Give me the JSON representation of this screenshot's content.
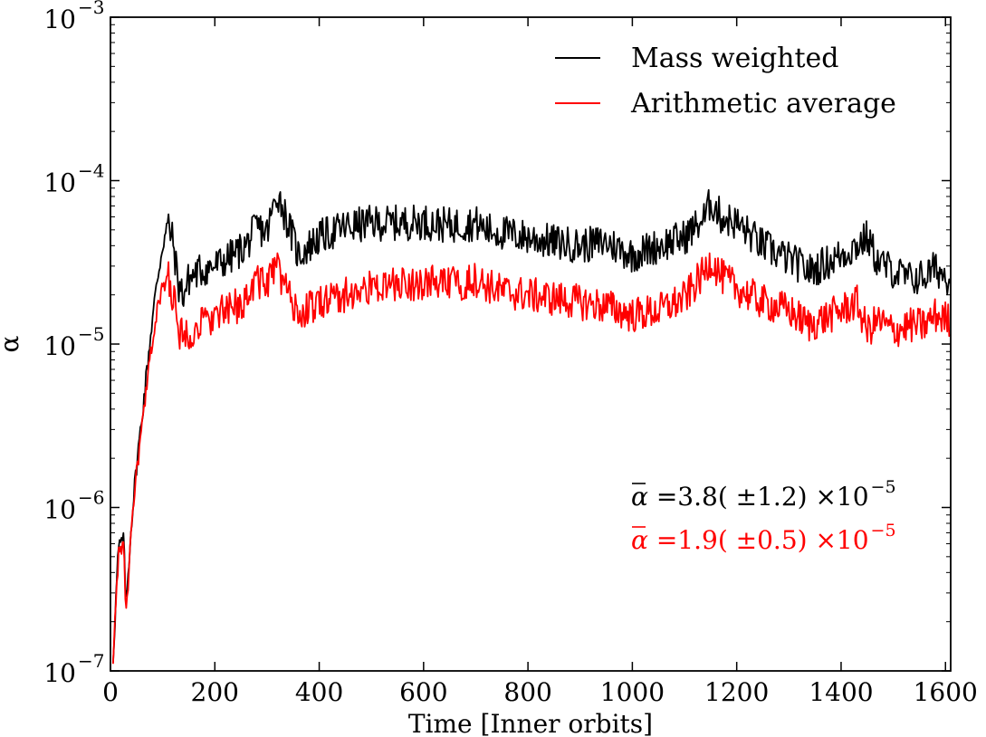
{
  "chart_data": {
    "type": "line",
    "xlabel": "Time [Inner orbits]",
    "ylabel": "α",
    "yscale": "log",
    "xlim": [
      0,
      1610
    ],
    "ylim": [
      1e-07,
      0.001
    ],
    "x_ticks": [
      {
        "value": 0,
        "label": "0"
      },
      {
        "value": 200,
        "label": "200"
      },
      {
        "value": 400,
        "label": "400"
      },
      {
        "value": 600,
        "label": "600"
      },
      {
        "value": 800,
        "label": "800"
      },
      {
        "value": 1000,
        "label": "1000"
      },
      {
        "value": 1200,
        "label": "1200"
      },
      {
        "value": 1400,
        "label": "1400"
      },
      {
        "value": 1600,
        "label": "1600"
      }
    ],
    "y_ticks": [
      {
        "value": 1e-07,
        "base": "10",
        "exponent": "−7"
      },
      {
        "value": 1e-06,
        "base": "10",
        "exponent": "−6"
      },
      {
        "value": 1e-05,
        "base": "10",
        "exponent": "−5"
      },
      {
        "value": 0.0001,
        "base": "10",
        "exponent": "−4"
      },
      {
        "value": 0.001,
        "base": "10",
        "exponent": "−3"
      }
    ],
    "legend_position": "top-right",
    "series": [
      {
        "name": "Mass weighted",
        "color": "#000000",
        "x": [
          5,
          15,
          25,
          30,
          40,
          50,
          60,
          70,
          80,
          90,
          100,
          110,
          120,
          130,
          140,
          150,
          170,
          200,
          230,
          260,
          280,
          300,
          320,
          340,
          360,
          400,
          450,
          500,
          550,
          600,
          650,
          700,
          720,
          750,
          800,
          850,
          900,
          950,
          1000,
          1050,
          1100,
          1140,
          1150,
          1170,
          1200,
          1250,
          1300,
          1340,
          1360,
          1400,
          1430,
          1450,
          1470,
          1500,
          1530,
          1560,
          1580,
          1610
        ],
        "values": [
          1.2e-07,
          5.5e-07,
          6.5e-07,
          2.5e-07,
          8e-07,
          1.8e-06,
          3.5e-06,
          7e-06,
          1.4e-05,
          2.5e-05,
          4e-05,
          5.5e-05,
          4.2e-05,
          2.3e-05,
          2e-05,
          2.5e-05,
          2.8e-05,
          3e-05,
          3.4e-05,
          4e-05,
          5.2e-05,
          4.8e-05,
          8.5e-05,
          5.5e-05,
          3.5e-05,
          4.5e-05,
          5.2e-05,
          5.5e-05,
          5.5e-05,
          5.6e-05,
          5.3e-05,
          5.5e-05,
          5e-05,
          4.8e-05,
          4.5e-05,
          4.2e-05,
          4e-05,
          4.2e-05,
          3.5e-05,
          4e-05,
          4.5e-05,
          6e-05,
          7.5e-05,
          6e-05,
          5.5e-05,
          4e-05,
          3.3e-05,
          2.8e-05,
          3e-05,
          3.5e-05,
          4e-05,
          4.5e-05,
          3.2e-05,
          2.8e-05,
          2.5e-05,
          2.6e-05,
          2.9e-05,
          2.5e-05
        ]
      },
      {
        "name": "Arithmetic average",
        "color": "#ff0000",
        "x": [
          5,
          15,
          25,
          30,
          40,
          50,
          60,
          70,
          80,
          90,
          100,
          110,
          120,
          130,
          140,
          150,
          170,
          200,
          230,
          260,
          280,
          300,
          320,
          340,
          360,
          400,
          450,
          500,
          550,
          600,
          650,
          700,
          720,
          750,
          800,
          850,
          900,
          950,
          1000,
          1050,
          1100,
          1140,
          1150,
          1170,
          1200,
          1250,
          1300,
          1340,
          1360,
          1400,
          1430,
          1450,
          1470,
          1500,
          1530,
          1560,
          1580,
          1610
        ],
        "values": [
          1.2e-07,
          5e-07,
          6e-07,
          2.2e-07,
          7e-07,
          1.6e-06,
          3e-06,
          5.5e-06,
          1.05e-05,
          1.6e-05,
          2.2e-05,
          2.6e-05,
          2e-05,
          1.2e-05,
          1.1e-05,
          1.2e-05,
          1.3e-05,
          1.5e-05,
          1.6e-05,
          1.9e-05,
          2.5e-05,
          2.3e-05,
          3e-05,
          2e-05,
          1.5e-05,
          1.8e-05,
          2e-05,
          2.2e-05,
          2.3e-05,
          2.4e-05,
          2.3e-05,
          2.5e-05,
          2.3e-05,
          2.1e-05,
          2e-05,
          1.9e-05,
          1.8e-05,
          1.7e-05,
          1.5e-05,
          1.6e-05,
          1.9e-05,
          2.8e-05,
          3.3e-05,
          2.6e-05,
          2.2e-05,
          1.8e-05,
          1.6e-05,
          1.3e-05,
          1.4e-05,
          1.6e-05,
          1.8e-05,
          1.2e-05,
          1.4e-05,
          1.2e-05,
          1.3e-05,
          1.3e-05,
          1.5e-05,
          1.4e-05
        ]
      }
    ],
    "annotations": [
      {
        "prefix": "α",
        "text": " =3.8( ±1.2) ×10",
        "exponent": "−5",
        "color": "#000000"
      },
      {
        "prefix": "α",
        "text": " =1.9( ±0.5) ×10",
        "exponent": "−5",
        "color": "#ff0000"
      }
    ]
  }
}
